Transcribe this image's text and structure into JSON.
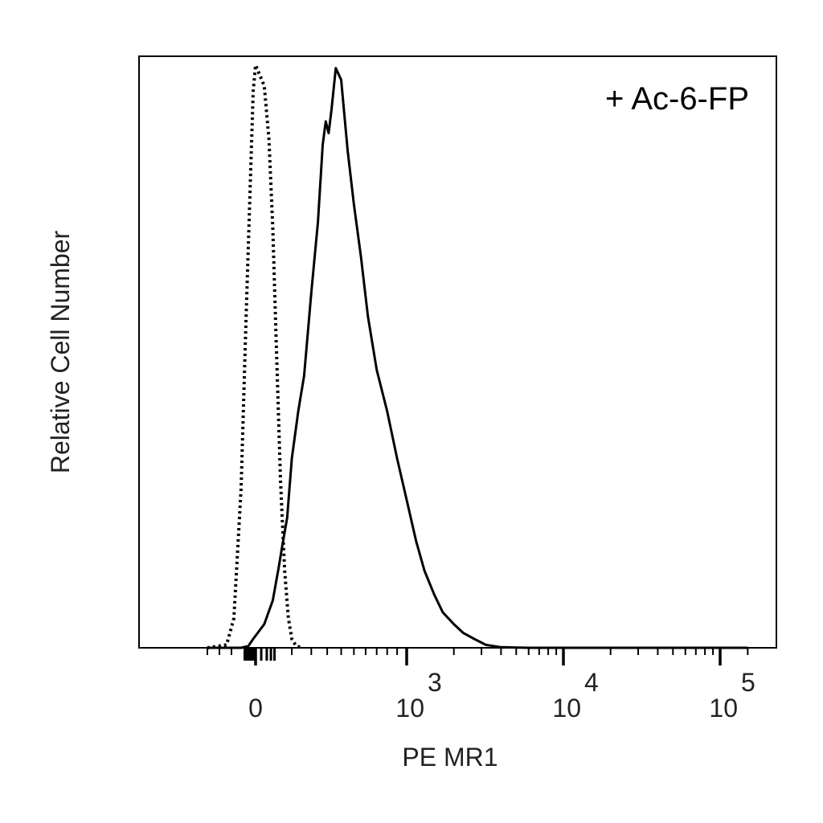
{
  "chart_data": {
    "type": "line",
    "title": "",
    "annotation": "+ Ac-6-FP",
    "xlabel": "PE MR1",
    "ylabel": "Relative Cell Number",
    "x_scale": "biexponential",
    "xlim": [
      -200,
      150000
    ],
    "ylim": [
      0,
      100
    ],
    "x_ticks": [
      {
        "base": "0",
        "exp": "",
        "value": 0
      },
      {
        "base": "10",
        "exp": "3",
        "value": 1000
      },
      {
        "base": "10",
        "exp": "4",
        "value": 10000
      },
      {
        "base": "10",
        "exp": "5",
        "value": 100000
      }
    ],
    "grid": false,
    "legend": "none",
    "series": [
      {
        "style": "dotted",
        "color": "#000000",
        "x": [
          -200,
          -120,
          -90,
          -60,
          -40,
          -20,
          -10,
          0,
          10,
          20,
          30,
          40,
          55,
          70,
          85,
          100,
          120,
          150
        ],
        "y": [
          0,
          0.5,
          5,
          27,
          55,
          81,
          94,
          98.5,
          95,
          86,
          71,
          52,
          28,
          13,
          5,
          1.5,
          0.3,
          0
        ]
      },
      {
        "style": "solid",
        "color": "#000000",
        "x": [
          -200,
          -60,
          -30,
          -10,
          10,
          30,
          50,
          60,
          80,
          100,
          130,
          160,
          200,
          240,
          270,
          290,
          310,
          330,
          360,
          400,
          450,
          500,
          560,
          620,
          700,
          800,
          900,
          1000,
          1150,
          1300,
          1500,
          1700,
          2000,
          2300,
          2700,
          3200,
          4000,
          6000,
          10000,
          30000,
          150000
        ],
        "y": [
          0,
          0,
          0.3,
          1.5,
          4,
          8,
          14,
          17,
          22,
          32,
          40,
          46,
          60,
          72,
          85,
          89,
          87,
          91,
          98,
          96,
          84,
          75,
          66,
          56,
          47,
          40,
          32,
          25,
          18,
          13,
          9,
          6,
          4,
          2.5,
          1.5,
          0.5,
          0.1,
          0,
          0,
          0,
          0
        ]
      }
    ]
  }
}
